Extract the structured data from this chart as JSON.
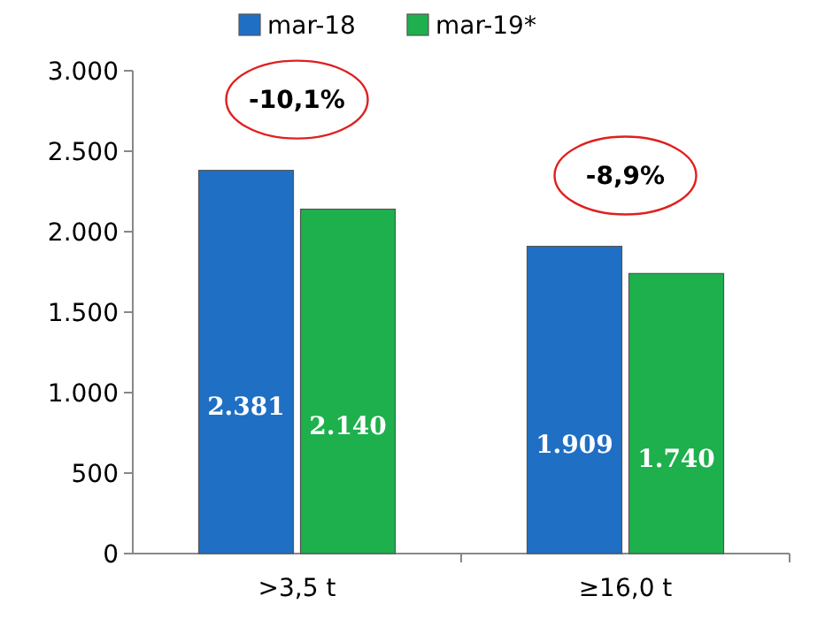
{
  "chart_data": {
    "type": "bar",
    "categories": [
      ">3,5 t",
      "≥16,0 t"
    ],
    "series": [
      {
        "name": "mar-18",
        "color": "#1f6fc4",
        "values": [
          2381,
          1909
        ],
        "value_labels": [
          "2.381",
          "1.909"
        ]
      },
      {
        "name": "mar-19*",
        "color": "#1db04c",
        "values": [
          2140,
          1740
        ],
        "value_labels": [
          "2.140",
          "1.740"
        ]
      }
    ],
    "ylim": [
      0,
      3000
    ],
    "yticks": [
      {
        "value": 0,
        "label": "0"
      },
      {
        "value": 500,
        "label": "500"
      },
      {
        "value": 1000,
        "label": "1.000"
      },
      {
        "value": 1500,
        "label": "1.500"
      },
      {
        "value": 2000,
        "label": "2.000"
      },
      {
        "value": 2500,
        "label": "2.500"
      },
      {
        "value": 3000,
        "label": "3.000"
      }
    ],
    "annotations": [
      "-10,1%",
      "-8,9%"
    ],
    "grid": false,
    "legend": "top"
  }
}
